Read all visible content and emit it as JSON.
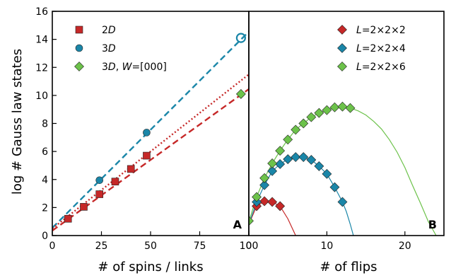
{
  "figure": {
    "y_axis_label": "log # Gauss law states",
    "colors": {
      "red": "#c62828",
      "blue": "#1a86a8",
      "green": "#6cc24a"
    }
  },
  "chart_data": [
    {
      "panel_label": "A",
      "type": "scatter",
      "xlabel": "# of spins / links",
      "ylabel": "log # Gauss law states",
      "xlim": [
        0,
        100
      ],
      "ylim": [
        0,
        16
      ],
      "xticks": [
        0,
        25,
        50,
        75,
        100
      ],
      "yticks": [
        0,
        2,
        4,
        6,
        8,
        10,
        12,
        14,
        16
      ],
      "legend_position": "top-left",
      "series": [
        {
          "name": "2D",
          "name_italic": "D",
          "name_prefix": "2",
          "color": "#c62828",
          "marker": "square",
          "x": [
            8,
            16,
            24,
            32,
            40,
            48
          ],
          "y": [
            1.2,
            2.05,
            2.95,
            3.85,
            4.75,
            5.7
          ]
        },
        {
          "name": "3D",
          "name_italic": "D",
          "name_prefix": "3",
          "color": "#1a86a8",
          "marker": "circle",
          "x": [
            24,
            48
          ],
          "y": [
            3.95,
            7.35
          ]
        },
        {
          "name": "3D, W=[000]",
          "name_prefix": "3",
          "name_italic": "D",
          "name_suffix_sep": ", ",
          "name_italic2": "W",
          "name_suffix": "=[000]",
          "color": "#6cc24a",
          "marker": "diamond",
          "x": [
            96
          ],
          "y": [
            10.1
          ]
        }
      ],
      "extra_points": [
        {
          "series": "3D",
          "x": 96,
          "y": 14.1,
          "marker": "open-circle"
        }
      ],
      "fit_lines": [
        {
          "color": "#1a86a8",
          "style": "dashed",
          "x": [
            0,
            100
          ],
          "y": [
            0.55,
            14.55
          ]
        },
        {
          "color": "#c62828",
          "style": "dotted",
          "x": [
            0,
            100
          ],
          "y": [
            0.5,
            11.5
          ]
        },
        {
          "color": "#c62828",
          "style": "dashed",
          "x": [
            0,
            100
          ],
          "y": [
            0.35,
            10.45
          ]
        }
      ]
    },
    {
      "panel_label": "B",
      "type": "scatter",
      "xlabel": "# of flips",
      "xlim": [
        0,
        25
      ],
      "ylim": [
        0,
        16
      ],
      "xticks": [
        0,
        10,
        20
      ],
      "legend_position": "top-right",
      "series": [
        {
          "name": "L=2×2×2",
          "name_italic": "L",
          "name_suffix": "=2×2×2",
          "color": "#c62828",
          "marker": "diamond",
          "x": [
            1,
            2,
            3,
            4
          ],
          "y": [
            2.1,
            2.45,
            2.4,
            2.1
          ]
        },
        {
          "name": "L=2×2×4",
          "name_italic": "L",
          "name_suffix": "=2×2×4",
          "color": "#1a86a8",
          "marker": "diamond",
          "x": [
            1,
            2,
            3,
            4,
            5,
            6,
            7,
            8,
            9,
            10,
            11,
            12
          ],
          "y": [
            2.4,
            3.6,
            4.6,
            5.1,
            5.45,
            5.6,
            5.6,
            5.4,
            4.95,
            4.4,
            3.45,
            2.4
          ]
        },
        {
          "name": "L=2×2×6",
          "name_italic": "L",
          "name_suffix": "=2×2×6",
          "color": "#6cc24a",
          "marker": "diamond",
          "x": [
            0,
            1,
            2,
            3,
            4,
            5,
            6,
            7,
            8,
            9,
            10,
            11,
            12,
            13
          ],
          "y": [
            1.05,
            2.75,
            4.1,
            5.15,
            6.05,
            6.85,
            7.55,
            8.0,
            8.45,
            8.75,
            8.95,
            9.15,
            9.2,
            9.1
          ]
        }
      ],
      "curves": [
        {
          "color": "#c62828",
          "x": [
            0,
            1,
            2,
            3,
            4,
            5,
            5.5,
            6
          ],
          "y": [
            0.8,
            2.1,
            2.45,
            2.4,
            2.1,
            1.2,
            0.6,
            0
          ]
        },
        {
          "color": "#1a86a8",
          "x": [
            0,
            1,
            2,
            3,
            4,
            5,
            6,
            7,
            8,
            9,
            10,
            11,
            12,
            12.5,
            13,
            13.4
          ],
          "y": [
            0.8,
            2.4,
            3.6,
            4.6,
            5.1,
            5.45,
            5.6,
            5.6,
            5.4,
            4.95,
            4.4,
            3.45,
            2.4,
            1.7,
            0.8,
            0
          ]
        },
        {
          "color": "#6cc24a",
          "x": [
            0,
            1,
            2,
            3,
            4,
            5,
            6,
            7,
            8,
            9,
            10,
            11,
            12,
            13,
            14,
            15,
            16,
            17,
            18,
            19,
            20,
            21,
            22,
            23,
            24
          ],
          "y": [
            1.0,
            2.75,
            4.1,
            5.15,
            6.05,
            6.85,
            7.55,
            8.0,
            8.45,
            8.75,
            8.95,
            9.15,
            9.2,
            9.1,
            8.9,
            8.6,
            8.15,
            7.6,
            6.85,
            5.95,
            4.85,
            3.55,
            2.3,
            1.0,
            0
          ]
        }
      ]
    }
  ]
}
